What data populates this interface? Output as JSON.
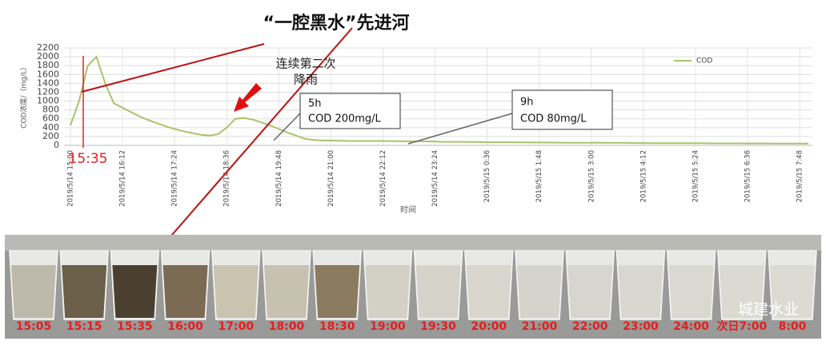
{
  "chart_data": {
    "type": "line",
    "title": "“一腔黑水”先进河",
    "y_label": "COD浓度/（mg/L）",
    "x_label": "时间",
    "categories": [
      "2019/5/14 15:00",
      null,
      null,
      null,
      null,
      null,
      "2019/5/14 16:12",
      null,
      null,
      null,
      null,
      null,
      "2019/5/14 17:24",
      null,
      null,
      null,
      null,
      null,
      "2019/5/14 18:36",
      null,
      null,
      null,
      null,
      null,
      "2019/5/14 19:48",
      null,
      null,
      null,
      null,
      null,
      "2019/5/14 21:00",
      null,
      null,
      null,
      null,
      null,
      "2019/5/14 22:12",
      null,
      null,
      null,
      null,
      null,
      "2019/5/14 23:24",
      null,
      null,
      null,
      null,
      null,
      "2019/5/15 0:36",
      null,
      null,
      null,
      null,
      null,
      "2019/5/15 1:48",
      null,
      null,
      null,
      null,
      null,
      "2019/5/15 3:00",
      null,
      null,
      null,
      null,
      null,
      "2019/5/15 4:12",
      null,
      null,
      null,
      null,
      null,
      "2019/5/15 5:24",
      null,
      null,
      null,
      null,
      null,
      "2019/5/15 6:36",
      null,
      null,
      null,
      null,
      null,
      "2019/5/15 7:48",
      null
    ],
    "series": [
      {
        "name": "COD",
        "color": "#a9c26a",
        "values": [
          450,
          1000,
          1800,
          2000,
          1400,
          950,
          850,
          750,
          650,
          570,
          500,
          430,
          370,
          320,
          280,
          240,
          220,
          250,
          400,
          600,
          620,
          580,
          520,
          450,
          370,
          290,
          220,
          150,
          120,
          110,
          110,
          105,
          100,
          100,
          100,
          100,
          100,
          95,
          95,
          90,
          90,
          90,
          85,
          80,
          80,
          80,
          75,
          75,
          70,
          70,
          70,
          68,
          68,
          65,
          65,
          63,
          63,
          60,
          60,
          60,
          58,
          58,
          55,
          55,
          55,
          53,
          53,
          50,
          50,
          50,
          50,
          48,
          48,
          48,
          45,
          45,
          45,
          45,
          43,
          43,
          43,
          42,
          42,
          40,
          40,
          40
        ]
      }
    ],
    "ylim": [
      0,
      2200
    ],
    "yticks": [
      0,
      200,
      400,
      600,
      800,
      1000,
      1200,
      1400,
      1600,
      1800,
      2000,
      2200
    ],
    "grid": true,
    "legend": "upper-right",
    "marker_label": "15:35",
    "rain_note": [
      "连续第二次",
      "降雨"
    ],
    "box_5h": [
      "5h",
      "COD 200mg/L"
    ],
    "box_9h": [
      "9h",
      "COD 80mg/L"
    ]
  },
  "photo": {
    "times": [
      "15:05",
      "15:15",
      "15:35",
      "16:00",
      "17:00",
      "18:00",
      "18:30",
      "19:00",
      "19:30",
      "20:00",
      "21:00",
      "22:00",
      "23:00",
      "24:00",
      "次日7:00",
      "8:00"
    ],
    "watermark": "城建水业"
  }
}
